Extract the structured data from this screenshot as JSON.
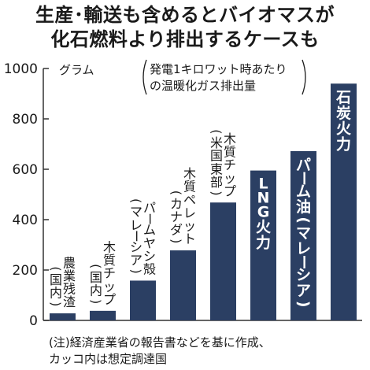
{
  "title": {
    "line1": "生産･輸送も含めるとバイオマスが",
    "line2": "化石燃料より排出するケースも"
  },
  "chart_data": {
    "type": "bar",
    "title": "生産･輸送も含めるとバイオマスが化石燃料より排出するケースも",
    "unit_label": "グラム",
    "subtitle": [
      "発電1キロワット時あたり",
      "の温暖化ガス排出量"
    ],
    "ylim": [
      0,
      1000
    ],
    "yticks": [
      0,
      200,
      400,
      600,
      800,
      1000
    ],
    "grid": false,
    "categories": [
      "農業残渣(国内)",
      "木質チップ(国内)",
      "パームヤシ殻(マレーシア)",
      "木質ペレット(カナダ)",
      "木質チップ(米国東部)",
      "LNG火力",
      "パーム油(マレーシア)",
      "石炭火力"
    ],
    "values": [
      28,
      38,
      158,
      278,
      468,
      595,
      672,
      940
    ],
    "labels_in_bar": [
      false,
      false,
      false,
      false,
      false,
      true,
      true,
      true
    ],
    "colors": {
      "bar": "#2b3f63",
      "bar_label_inside": "#ffffff",
      "axis": "#333333"
    }
  },
  "note": {
    "line1": "(注)経済産業省の報告書などを基に作成、",
    "line2": "カッコ内は想定調達国"
  }
}
